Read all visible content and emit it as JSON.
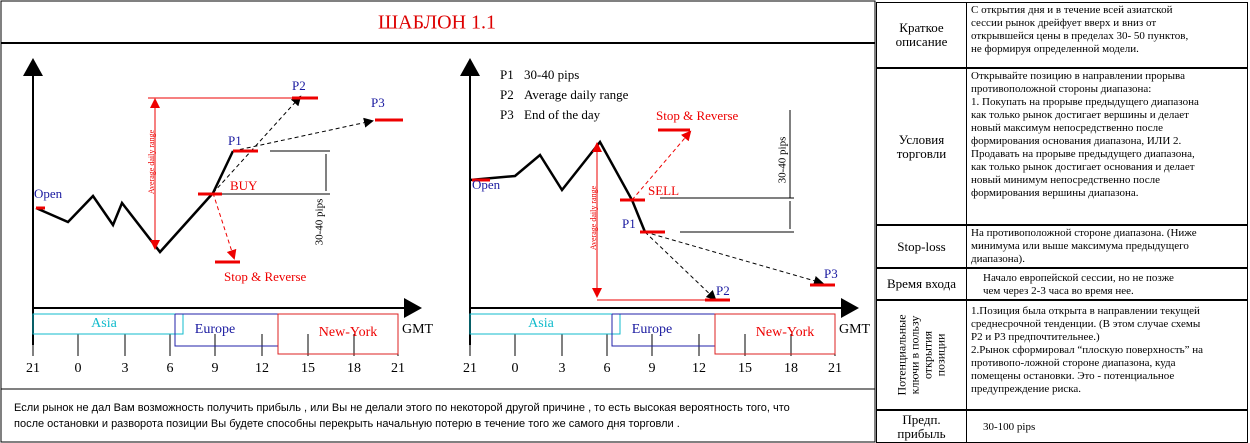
{
  "header": {
    "title": "ШАБЛОН 1.1"
  },
  "diagrams": [
    {
      "labels": {
        "open": "Open",
        "p1": "P1",
        "p2": "P2",
        "p3": "P3",
        "signal": "BUY",
        "stop": "Stop & Reverse",
        "range": "Average daily range",
        "pips": "30-40 pips"
      },
      "sessions": [
        "Asia",
        "Europe",
        "New-York"
      ],
      "unit": "GMT",
      "ticks": [
        "21",
        "0",
        "3",
        "6",
        "9",
        "12",
        "15",
        "18",
        "21"
      ]
    },
    {
      "labels": {
        "open": "Open",
        "p1": "P1",
        "p2": "P2",
        "p3": "P3",
        "signal": "SELL",
        "stop": "Stop & Reverse",
        "range": "Average daily range",
        "pips": "30-40 pips"
      },
      "sessions": [
        "Asia",
        "Europe",
        "New-York"
      ],
      "unit": "GMT",
      "ticks": [
        "21",
        "0",
        "3",
        "6",
        "9",
        "12",
        "15",
        "18",
        "21"
      ],
      "legend": [
        {
          "key": "P1",
          "text": "30-40 pips"
        },
        {
          "key": "P2",
          "text": "Average daily range"
        },
        {
          "key": "P3",
          "text": "End of the day"
        }
      ]
    }
  ],
  "footer": {
    "lines": [
      "Если рынок не дал Вам возможность получить прибыль , или Вы не делали этого по некоторой другой причине , то есть высокая вероятность того, что",
      "после остановки и разворота позиции Вы будете способны перекрыть начальную потерю в течение того же самого дня торговли  ."
    ]
  },
  "table": {
    "rows": [
      {
        "label": [
          "Краткое",
          "описание"
        ],
        "content": [
          "С  открытия дня и в течение всей  азиатской",
          "сессии рынок дрейфует вверх и вниз  от",
          "открывшейся цены в пределах 30- 50 пунктов,",
          "не формируя определенной модели."
        ]
      },
      {
        "label": [
          "Условия",
          "торговли"
        ],
        "content": [
          "Открывайте позицию в направлении прорыва",
          "противоположной стороны диапазона:",
          "1. Покупать на прорыве  предыдущего диапазона",
          "как только рынок достигает вершины и делает",
          "новый  максимум непосредственно после",
          "формирования основания диапазона, ИЛИ 2.",
          "Продавать на прорыве предыдущего диапазона,",
          "как только рынок достигает основания и делает",
          "новый  минимум непосредственно после",
          "формирования вершины диапазона."
        ]
      },
      {
        "label": [
          "Stop-loss"
        ],
        "content": [
          "На  противоположной стороне диапазона. (Ниже",
          "минимума или выше максимума предыдущего",
          "диапазона)."
        ]
      },
      {
        "label": [
          "Время входа"
        ],
        "content": [
          "Начало европейской сессии, но не позже",
          "чем через 2-3 часа во время нее."
        ]
      },
      {
        "label": [
          "Потенциальные",
          "ключи в пользу",
          "открытия",
          "позиции"
        ],
        "content": [
          "1.Позиция была открыта в направлении  текущей",
          "среднесрочной тенденции. (В этом случае схемы",
          "P2 и P3 предпочтительнее.)",
          "2.Рынок сформировал “плоскую поверхность” на",
          "противопо-ложной стороне диапазона, куда",
          "помещены остановки. Это - потенциальное",
          "предупреждение риска."
        ]
      },
      {
        "label": [
          "Предп.",
          "прибыль"
        ],
        "content": [
          "30-100 pips"
        ]
      }
    ]
  }
}
